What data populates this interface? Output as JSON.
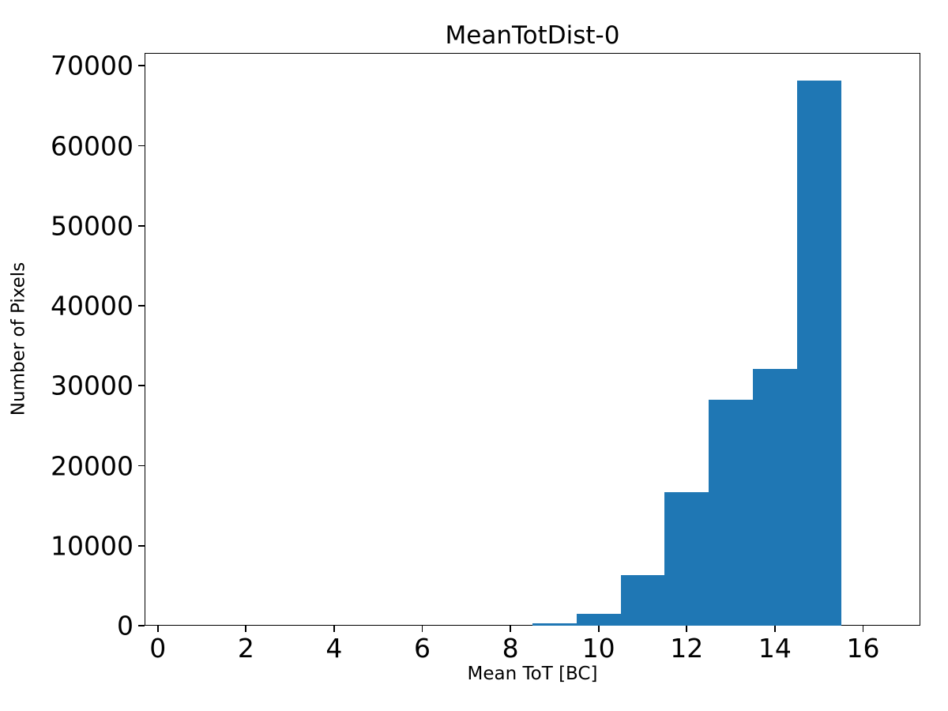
{
  "figure": {
    "title": "MeanTotDist-0",
    "xlabel": "Mean ToT [BC]",
    "ylabel": "Number of Pixels"
  },
  "chart_data": {
    "type": "bar",
    "subtype": "histogram",
    "title": "MeanTotDist-0",
    "xlabel": "Mean ToT [BC]",
    "ylabel": "Number of Pixels",
    "bar_color": "#1f77b4",
    "background_color": "#ffffff",
    "axis_color": "#000000",
    "grid": false,
    "legend": null,
    "xlim": [
      -0.3,
      17.3
    ],
    "ylim": [
      0,
      71610
    ],
    "x_ticks": [
      0,
      2,
      4,
      6,
      8,
      10,
      12,
      14,
      16
    ],
    "y_ticks": [
      0,
      10000,
      20000,
      30000,
      40000,
      50000,
      60000,
      70000
    ],
    "bin_width": 1,
    "bins": [
      {
        "x0": 0.5,
        "x1": 1.5,
        "count": 0
      },
      {
        "x0": 1.5,
        "x1": 2.5,
        "count": 0
      },
      {
        "x0": 2.5,
        "x1": 3.5,
        "count": 0
      },
      {
        "x0": 3.5,
        "x1": 4.5,
        "count": 0
      },
      {
        "x0": 4.5,
        "x1": 5.5,
        "count": 0
      },
      {
        "x0": 5.5,
        "x1": 6.5,
        "count": 0
      },
      {
        "x0": 6.5,
        "x1": 7.5,
        "count": 0
      },
      {
        "x0": 7.5,
        "x1": 8.5,
        "count": 0
      },
      {
        "x0": 8.5,
        "x1": 9.5,
        "count": 270
      },
      {
        "x0": 9.5,
        "x1": 10.5,
        "count": 1500
      },
      {
        "x0": 10.5,
        "x1": 11.5,
        "count": 6300
      },
      {
        "x0": 11.5,
        "x1": 12.5,
        "count": 16650
      },
      {
        "x0": 12.5,
        "x1": 13.5,
        "count": 28200
      },
      {
        "x0": 13.5,
        "x1": 14.5,
        "count": 32100
      },
      {
        "x0": 14.5,
        "x1": 15.5,
        "count": 68200
      },
      {
        "x0": 15.5,
        "x1": 16.5,
        "count": 0
      }
    ]
  }
}
